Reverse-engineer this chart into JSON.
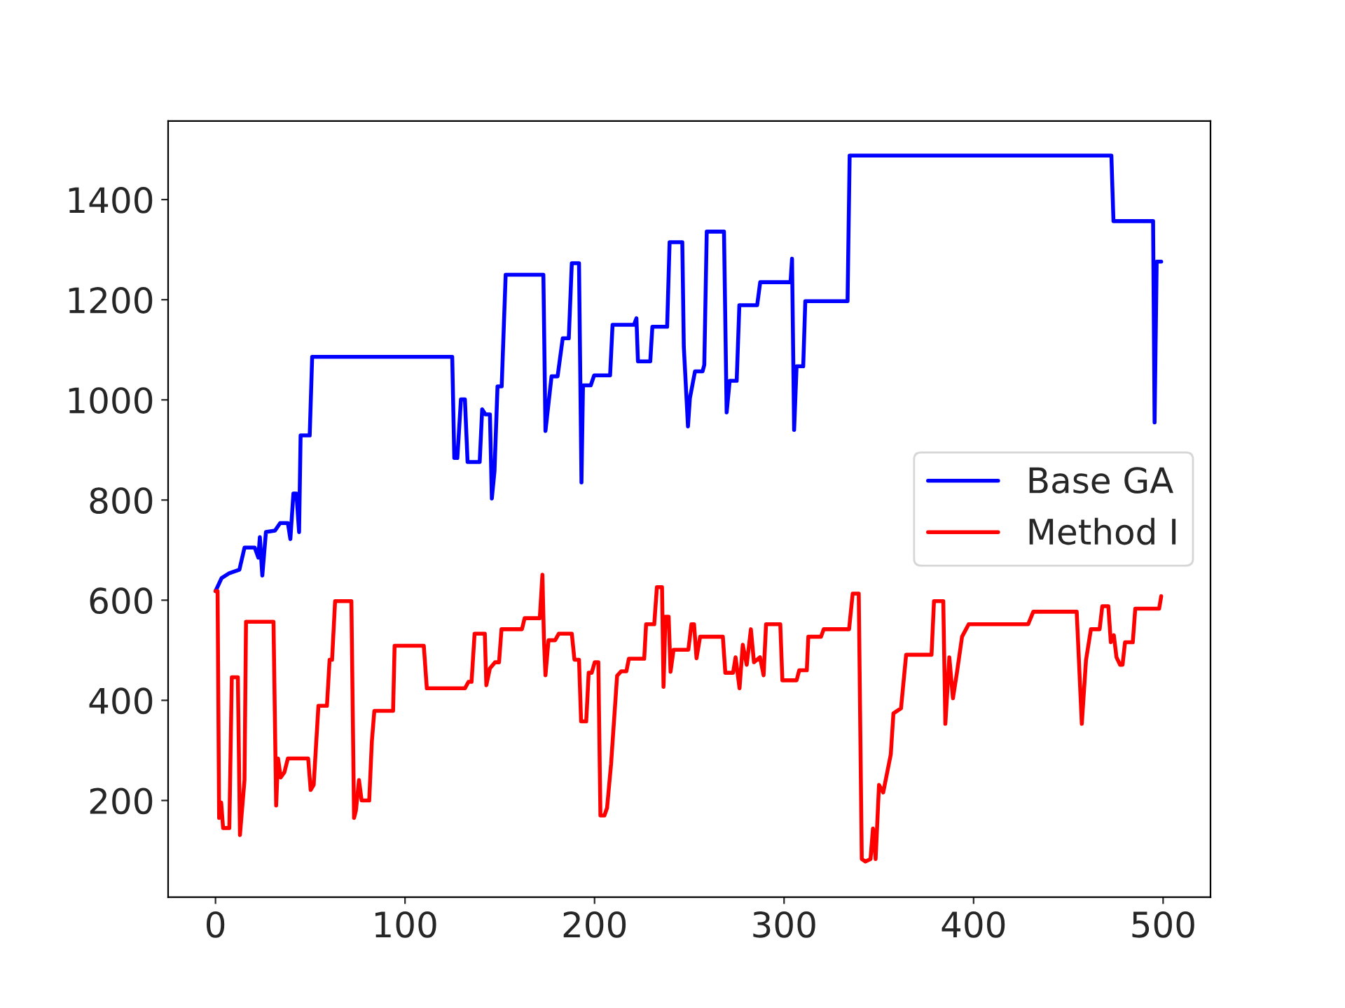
{
  "chart_data": {
    "type": "line",
    "xlim": [
      -25,
      525
    ],
    "ylim": [
      7,
      1557
    ],
    "xticks": [
      0,
      100,
      200,
      300,
      400,
      500
    ],
    "yticks": [
      200,
      400,
      600,
      800,
      1000,
      1200,
      1400
    ],
    "grid": false,
    "legend": "right",
    "marker": "none",
    "line_style": "solid",
    "series": [
      {
        "name": "Base GA",
        "color": "#0000ff",
        "x": [
          0,
          3.2,
          7.3,
          12.6,
          15.3,
          20.7,
          22.6,
          23.4,
          24.7,
          26.6,
          31.4,
          34.1,
          38.2,
          39.5,
          41.1,
          42.7,
          44.1,
          44.9,
          49.7,
          51.0,
          124.9,
          126.0,
          127.6,
          129.5,
          131.6,
          133.0,
          139.4,
          140.7,
          142.4,
          144.8,
          145.8,
          147.2,
          148.8,
          151.0,
          153.1,
          173.0,
          174.1,
          177.3,
          180.5,
          183.2,
          186.4,
          188.0,
          191.8,
          193.1,
          193.9,
          198.0,
          199.8,
          208.2,
          209.5,
          220.8,
          222.1,
          222.9,
          229.4,
          230.5,
          238.3,
          239.6,
          246.3,
          247.1,
          249.3,
          250.3,
          253.0,
          257.0,
          257.9,
          259.2,
          268.3,
          269.7,
          271.3,
          275.0,
          276.4,
          285.8,
          287.4,
          303.4,
          304.2,
          305.3,
          306.6,
          310.1,
          311.2,
          333.5,
          334.6,
          472.7,
          473.8,
          494.7,
          495.5,
          496.6,
          499
        ],
        "values": [
          618,
          644,
          654,
          661,
          705,
          705,
          685,
          726,
          649,
          736,
          739,
          754,
          754,
          722,
          813,
          813,
          736,
          929,
          929,
          1086,
          1086,
          884,
          884,
          1001,
          1001,
          876,
          876,
          981,
          971,
          971,
          803,
          857,
          1027,
          1027,
          1250,
          1250,
          938,
          1047,
          1047,
          1123,
          1123,
          1273,
          1273,
          835,
          1029,
          1029,
          1049,
          1049,
          1150,
          1150,
          1163,
          1077,
          1077,
          1146,
          1146,
          1315,
          1315,
          1106,
          947,
          1003,
          1057,
          1057,
          1070,
          1336,
          1336,
          975,
          1038,
          1038,
          1189,
          1189,
          1235,
          1235,
          1282,
          940,
          1067,
          1067,
          1197,
          1197,
          1488,
          1488,
          1357,
          1357,
          955,
          1276,
          1276
        ]
      },
      {
        "name": "Method I",
        "color": "#ff0000",
        "x": [
          0,
          1.1,
          1.9,
          3.0,
          4.0,
          7.3,
          8.6,
          11.8,
          12.9,
          15.3,
          16.1,
          30.6,
          32.0,
          33.0,
          34.4,
          36.3,
          38.2,
          48.9,
          50.2,
          51.8,
          54.3,
          58.8,
          60.2,
          61.5,
          63.1,
          71.7,
          73.1,
          74.1,
          75.7,
          77.1,
          81.1,
          82.5,
          83.8,
          93.7,
          94.5,
          109.9,
          111.5,
          131.6,
          133.5,
          135.1,
          136.7,
          142.1,
          142.9,
          144.8,
          147.5,
          149.6,
          150.9,
          161.7,
          163.1,
          171.1,
          172.5,
          173.3,
          174.1,
          175.7,
          179.2,
          181.1,
          188.0,
          189.4,
          191.8,
          192.9,
          195.6,
          196.9,
          198.5,
          200.1,
          202.0,
          203.1,
          205.2,
          206.6,
          208.7,
          211.9,
          214.1,
          216.8,
          218.1,
          226.2,
          227.2,
          231.5,
          232.9,
          235.6,
          236.4,
          237.4,
          239.1,
          240.1,
          241.7,
          249.5,
          251.1,
          252.5,
          253.8,
          255.7,
          267.7,
          269.0,
          273.1,
          274.4,
          276.5,
          278.2,
          280.3,
          282.5,
          284.1,
          287.3,
          289.2,
          290.5,
          298.0,
          299.1,
          306.6,
          308.0,
          312.0,
          312.8,
          319.5,
          320.9,
          334.3,
          336.2,
          339.4,
          341.0,
          342.9,
          345.6,
          346.9,
          348.3,
          350.1,
          352.3,
          356.3,
          357.7,
          361.7,
          364.4,
          377.8,
          379.1,
          384.0,
          385.1,
          387.2,
          389.1,
          391.2,
          393.9,
          397.4,
          428.8,
          431.5,
          454.4,
          457.1,
          459.3,
          461.9,
          466.5,
          467.9,
          471.1,
          472.4,
          474.0,
          475.4,
          477.3,
          478.6,
          479.9,
          484.0,
          485.3,
          497.9,
          499
        ],
        "values": [
          618,
          618,
          165,
          196,
          145,
          145,
          446,
          446,
          131,
          241,
          557,
          557,
          190,
          284,
          246,
          256,
          284,
          284,
          221,
          231,
          389,
          389,
          481,
          481,
          598,
          598,
          165,
          180,
          241,
          200,
          200,
          318,
          379,
          379,
          509,
          509,
          424,
          424,
          437,
          437,
          533,
          533,
          430,
          464,
          476,
          476,
          542,
          542,
          564,
          564,
          651,
          522,
          450,
          520,
          520,
          533,
          533,
          481,
          481,
          358,
          358,
          455,
          455,
          476,
          476,
          170,
          170,
          185,
          272,
          449,
          458,
          458,
          483,
          483,
          552,
          552,
          626,
          626,
          427,
          567,
          567,
          457,
          501,
          501,
          552,
          552,
          484,
          527,
          527,
          455,
          455,
          486,
          424,
          511,
          471,
          542,
          476,
          486,
          450,
          552,
          552,
          440,
          440,
          460,
          460,
          527,
          527,
          542,
          542,
          613,
          613,
          83,
          78,
          83,
          144,
          83,
          231,
          216,
          292,
          374,
          384,
          491,
          491,
          598,
          598,
          353,
          486,
          404,
          455,
          527,
          552,
          552,
          577,
          577,
          353,
          480,
          542,
          542,
          588,
          588,
          516,
          530,
          486,
          471,
          471,
          516,
          516,
          583,
          583,
          608
        ]
      }
    ]
  }
}
